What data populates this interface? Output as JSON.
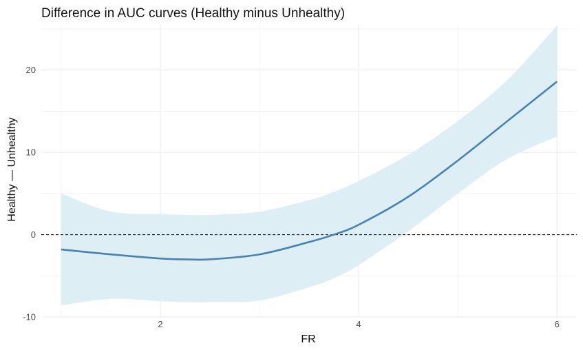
{
  "chart_data": {
    "type": "line",
    "title": "Difference in AUC curves (Healthy minus Unhealthy)",
    "xlabel": "FR",
    "ylabel": "Healthy — Unhealthy",
    "xlim": [
      0.8,
      6.2
    ],
    "ylim": [
      -10,
      25.5
    ],
    "x_ticks": [
      2,
      4,
      6
    ],
    "y_ticks": [
      -10,
      0,
      10,
      20
    ],
    "x_minor_ticks": [
      1,
      3,
      5
    ],
    "y_minor_ticks": [
      -5,
      5,
      15,
      25
    ],
    "grid": true,
    "legend": "none",
    "reference_line": {
      "y": 0,
      "style": "dashed"
    },
    "series": [
      {
        "x": [
          1.0,
          1.5,
          2.0,
          2.25,
          2.5,
          3.0,
          3.5,
          3.75,
          4.0,
          4.5,
          5.0,
          5.5,
          6.0
        ],
        "y": [
          -1.8,
          -2.4,
          -2.9,
          -3.0,
          -3.0,
          -2.4,
          -0.9,
          0.0,
          1.2,
          4.6,
          9.0,
          13.8,
          18.6
        ],
        "lower": [
          -8.6,
          -7.8,
          -8.1,
          -8.2,
          -8.2,
          -8.0,
          -6.4,
          -5.3,
          -3.7,
          0.4,
          5.0,
          9.2,
          11.9
        ],
        "upper": [
          5.0,
          2.8,
          2.5,
          2.4,
          2.4,
          2.8,
          4.2,
          5.2,
          6.5,
          9.7,
          13.8,
          18.8,
          25.4
        ]
      }
    ],
    "colors": {
      "line": "#4682b4",
      "band": "#ddeef5",
      "grid": "#ebebeb",
      "reference": "#000000"
    }
  }
}
